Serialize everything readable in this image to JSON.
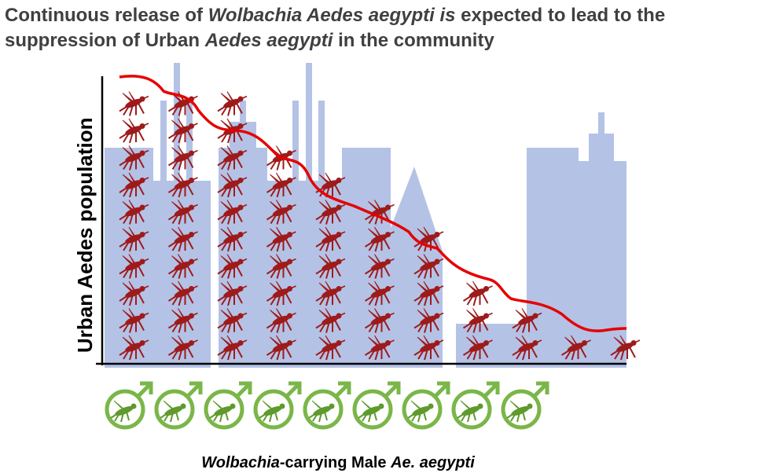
{
  "title": {
    "line1_prefix": "Continuous release of ",
    "line1_italic": "Wolbachia Aedes aegypti is",
    "line1_suffix": " expected to lead to the",
    "line2_prefix": "suppression of Urban ",
    "line2_italic": "Aedes aegypti",
    "line2_suffix": " in the community"
  },
  "y_axis_label": "Urban Aedes population",
  "x_axis_label": {
    "italic_part": "Wolbachia",
    "rest_part": "-carrying Male ",
    "italic_tail": "Ae. aegypti"
  },
  "columns": {
    "urban_mosquito_counts": [
      10,
      10,
      10,
      8,
      7,
      6,
      5,
      3,
      2,
      1,
      1
    ],
    "male_wolbachia_count": 9
  },
  "colors": {
    "city_silhouette": "#b4c2e6",
    "urban_mosquito": "#9e1b1b",
    "trend_line": "#e60000",
    "male_symbol": "#7ab648",
    "axis": "#000000"
  },
  "icons": {
    "urban": "mosquito-icon",
    "male": "male-wolbachia-mosquito-icon"
  }
}
